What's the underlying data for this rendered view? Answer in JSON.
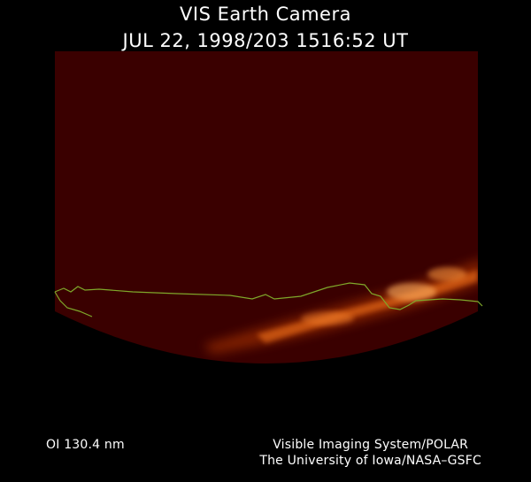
{
  "header": {
    "title": "VIS Earth Camera",
    "timestamp": "JUL 22, 1998/203 1516:52 UT"
  },
  "footer": {
    "wavelength": "OI  130.4 nm",
    "instrument": "Visible Imaging System/POLAR",
    "institution": "The University of Iowa/NASA–GSFC"
  },
  "colors": {
    "background": "#000000",
    "disk": "#3a0000",
    "aurora": "#ff7a1a",
    "coastline": "#7fa82a",
    "text": "#ffffff"
  }
}
